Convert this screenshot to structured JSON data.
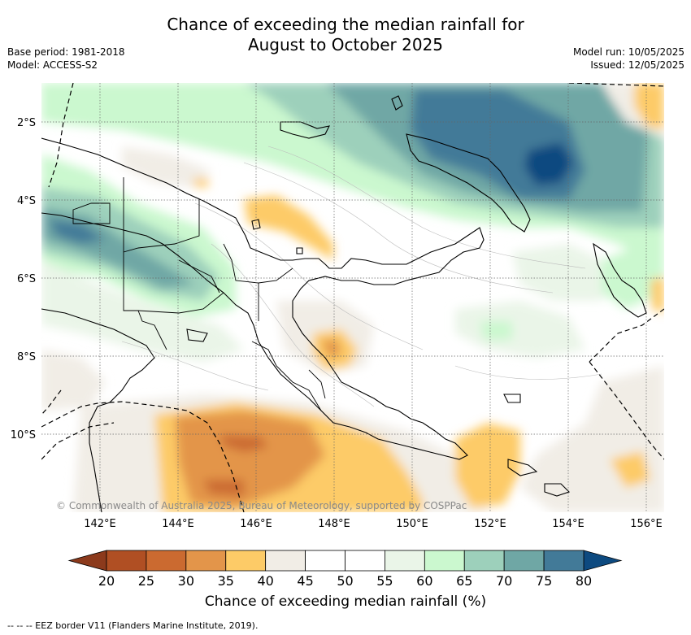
{
  "title": {
    "line1": "Chance of exceeding the median rainfall for",
    "line2": "August to October 2025"
  },
  "meta_left": {
    "base_period": "Base period: 1981-2018",
    "model": "Model: ACCESS-S2"
  },
  "meta_right": {
    "model_run": "Model run: 10/05/2025",
    "issued": "Issued: 12/05/2025"
  },
  "map": {
    "lat_labels": [
      "2°S",
      "4°S",
      "6°S",
      "8°S",
      "10°S"
    ],
    "lon_labels": [
      "142°E",
      "144°E",
      "146°E",
      "148°E",
      "150°E",
      "152°E",
      "154°E",
      "156°E"
    ],
    "copyright": "© Commonwealth of Australia 2025, Bureau of Meteorology, supported by COSPPac"
  },
  "colorbar": {
    "ticks": [
      "20",
      "25",
      "30",
      "35",
      "40",
      "45",
      "50",
      "55",
      "60",
      "65",
      "70",
      "75",
      "80"
    ],
    "colors": [
      "#b04f23",
      "#cb6a30",
      "#e3954a",
      "#fdcb67",
      "#f1ede6",
      "#ffffff",
      "#ffffff",
      "#eaf5e8",
      "#cbf8cf",
      "#9dd0bb",
      "#6fa7a5",
      "#427a98"
    ],
    "low_color": "#8c3a1c",
    "high_color": "#0d4a80",
    "title": "Chance of exceeding median rainfall (%)"
  },
  "legend_note": "-- -- -- EEZ border V11 (Flanders Marine Institute, 2019)."
}
